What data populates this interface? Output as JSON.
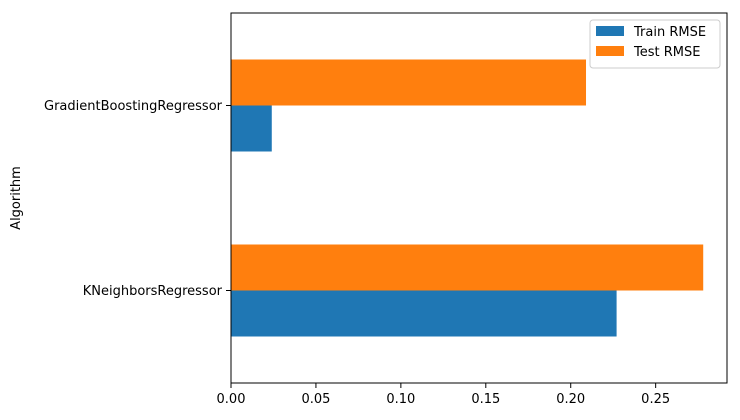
{
  "chart_data": {
    "type": "bar",
    "orientation": "horizontal",
    "ylabel": "Algorithm",
    "xlabel": "",
    "categories": [
      "KNeighborsRegressor",
      "GradientBoostingRegressor"
    ],
    "series": [
      {
        "name": "Train RMSE",
        "color": "#1f77b4",
        "values": [
          0.227,
          0.024
        ]
      },
      {
        "name": "Test RMSE",
        "color": "#ff7f0e",
        "values": [
          0.278,
          0.209
        ]
      }
    ],
    "xlim": [
      0,
      0.292
    ],
    "xticks": [
      "0.00",
      "0.05",
      "0.10",
      "0.15",
      "0.20",
      "0.25"
    ],
    "xtick_values": [
      0,
      0.05,
      0.1,
      0.15,
      0.2,
      0.25
    ],
    "legend": "top-right",
    "grid": false
  }
}
